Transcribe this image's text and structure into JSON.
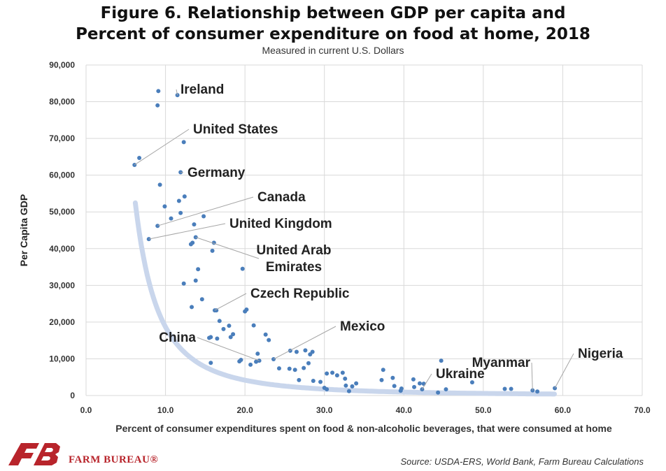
{
  "title_line1": "Figure 6. Relationship between GDP per capita and",
  "title_line2": "Percent of consumer expenditure on food at home, 2018",
  "subtitle": "Measured in current U.S. Dollars",
  "source": "Source: USDA-ERS, World Bank, Farm Bureau Calculations",
  "logo_text": "FARM BUREAU®",
  "colors": {
    "points": "#4a7ebb",
    "trend": "#c9d6ec",
    "grid": "#d9d9d9",
    "leader": "#a6a6a6",
    "logo": "#b8242b"
  },
  "chart_data": {
    "type": "scatter",
    "xlabel": "Percent of consumer expenditures spent on food & non-alcoholic beverages, that were consumed at home",
    "ylabel": "Per Capita GDP",
    "xlim": [
      0,
      70
    ],
    "ylim": [
      0,
      90000
    ],
    "xticks": [
      "0.0",
      "10.0",
      "20.0",
      "30.0",
      "40.0",
      "50.0",
      "60.0",
      "70.0"
    ],
    "yticks": [
      "0",
      "10,000",
      "20,000",
      "30,000",
      "40,000",
      "50,000",
      "60,000",
      "70,000",
      "80,000",
      "90,000"
    ],
    "grid": true,
    "trendline": {
      "type": "power",
      "a": 2700000,
      "b": -2.16,
      "x_range": [
        6.2,
        59
      ]
    },
    "points": [
      [
        9.1,
        82900
      ],
      [
        11.5,
        81800
      ],
      [
        9.0,
        79000
      ],
      [
        12.3,
        69000
      ],
      [
        6.7,
        64700
      ],
      [
        6.1,
        62800
      ],
      [
        11.9,
        60800
      ],
      [
        9.3,
        57400
      ],
      [
        12.4,
        54200
      ],
      [
        11.7,
        53000
      ],
      [
        9.9,
        51500
      ],
      [
        11.9,
        49700
      ],
      [
        14.8,
        48800
      ],
      [
        10.7,
        48200
      ],
      [
        9.0,
        46200
      ],
      [
        13.6,
        46600
      ],
      [
        7.9,
        42600
      ],
      [
        13.8,
        43100
      ],
      [
        13.4,
        41600
      ],
      [
        16.1,
        41600
      ],
      [
        13.2,
        41200
      ],
      [
        15.9,
        39400
      ],
      [
        14.1,
        34400
      ],
      [
        19.7,
        34500
      ],
      [
        13.8,
        31300
      ],
      [
        12.3,
        30500
      ],
      [
        14.6,
        26200
      ],
      [
        13.3,
        24100
      ],
      [
        16.4,
        23200
      ],
      [
        16.2,
        23200
      ],
      [
        20.2,
        23400
      ],
      [
        20.0,
        22900
      ],
      [
        16.8,
        20300
      ],
      [
        18.0,
        19000
      ],
      [
        17.3,
        18100
      ],
      [
        21.1,
        19100
      ],
      [
        18.5,
        16700
      ],
      [
        22.6,
        16600
      ],
      [
        23.0,
        15100
      ],
      [
        18.2,
        15900
      ],
      [
        16.5,
        15500
      ],
      [
        15.7,
        15900
      ],
      [
        15.5,
        15700
      ],
      [
        21.6,
        11400
      ],
      [
        25.7,
        12200
      ],
      [
        26.5,
        11900
      ],
      [
        27.6,
        12300
      ],
      [
        28.5,
        11900
      ],
      [
        28.2,
        11200
      ],
      [
        21.8,
        9500
      ],
      [
        19.3,
        9300
      ],
      [
        21.4,
        9200
      ],
      [
        23.6,
        9900
      ],
      [
        15.7,
        8900
      ],
      [
        20.7,
        8400
      ],
      [
        24.3,
        7400
      ],
      [
        25.6,
        7300
      ],
      [
        26.3,
        7000
      ],
      [
        27.4,
        7500
      ],
      [
        28.0,
        8800
      ],
      [
        30.3,
        6000
      ],
      [
        31.0,
        6200
      ],
      [
        32.3,
        6200
      ],
      [
        31.6,
        5500
      ],
      [
        32.6,
        4600
      ],
      [
        34.0,
        3300
      ],
      [
        26.8,
        4200
      ],
      [
        28.6,
        4000
      ],
      [
        29.5,
        3700
      ],
      [
        30.0,
        2100
      ],
      [
        30.3,
        1700
      ],
      [
        32.7,
        2700
      ],
      [
        33.1,
        1200
      ],
      [
        33.5,
        2500
      ],
      [
        37.2,
        4200
      ],
      [
        37.4,
        7000
      ],
      [
        38.6,
        4800
      ],
      [
        38.8,
        2600
      ],
      [
        39.7,
        1900
      ],
      [
        39.6,
        1300
      ],
      [
        41.2,
        4400
      ],
      [
        41.3,
        2300
      ],
      [
        42.0,
        3300
      ],
      [
        42.5,
        3200
      ],
      [
        42.3,
        1700
      ],
      [
        44.3,
        800
      ],
      [
        44.7,
        9500
      ],
      [
        45.3,
        1700
      ],
      [
        48.6,
        3600
      ],
      [
        52.7,
        1800
      ],
      [
        53.5,
        1800
      ],
      [
        56.2,
        1400
      ],
      [
        56.8,
        1100
      ],
      [
        59.0,
        2000
      ],
      [
        19.5,
        9700
      ]
    ],
    "annotations": [
      {
        "label": "Ireland",
        "point": [
          11.5,
          81800
        ]
      },
      {
        "label": "United States",
        "point": [
          6.1,
          62800
        ]
      },
      {
        "label": "Germany",
        "point": [
          11.9,
          60800
        ]
      },
      {
        "label": "Canada",
        "point": [
          9.0,
          46200
        ]
      },
      {
        "label": "United Kingdom",
        "point": [
          7.9,
          42600
        ]
      },
      {
        "label": "United Arab Emirates",
        "point": [
          13.8,
          43100
        ]
      },
      {
        "label": "Czech Republic",
        "point": [
          16.2,
          23200
        ]
      },
      {
        "label": "Mexico",
        "point": [
          23.6,
          9900
        ]
      },
      {
        "label": "China",
        "point": [
          21.8,
          9500
        ]
      },
      {
        "label": "Ukraine",
        "point": [
          42.3,
          1700
        ]
      },
      {
        "label": "Myanmar",
        "point": [
          56.2,
          1400
        ]
      },
      {
        "label": "Nigeria",
        "point": [
          59.0,
          2000
        ]
      }
    ]
  }
}
